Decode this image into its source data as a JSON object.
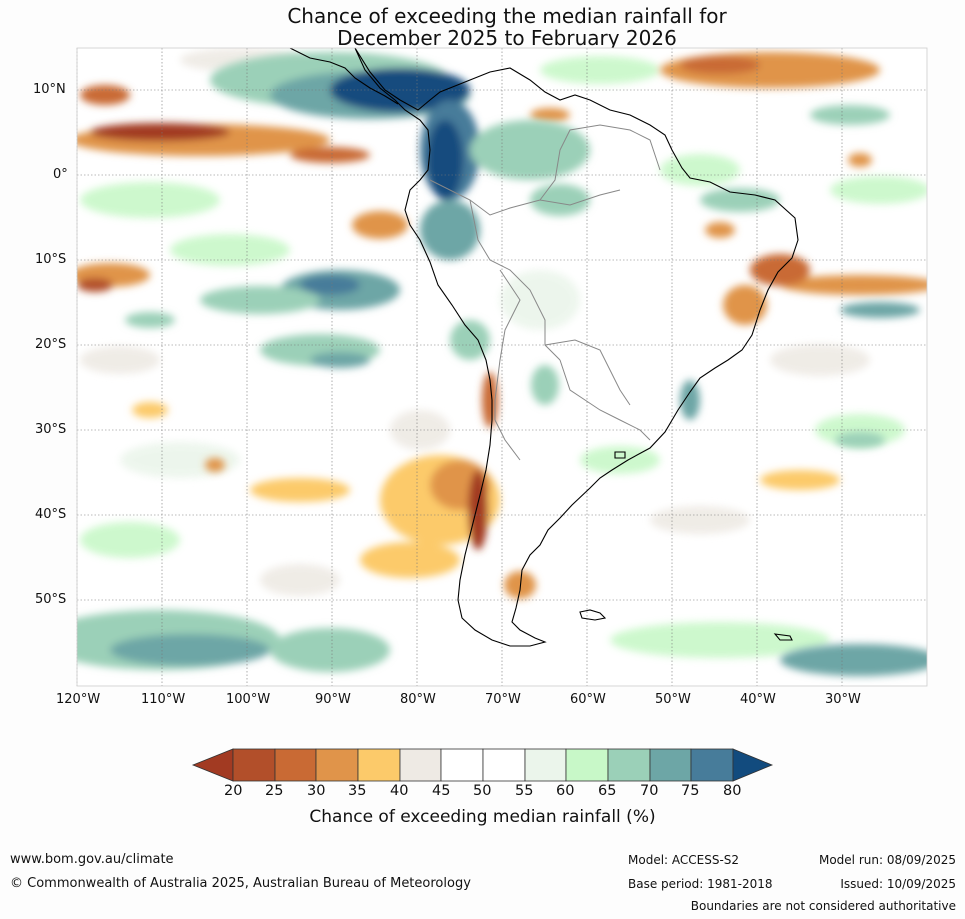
{
  "title": {
    "line1": "Chance of exceeding the median rainfall for",
    "line2": "December 2025 to February 2026"
  },
  "map": {
    "lat_labels": [
      "10°N",
      "0°",
      "10°S",
      "20°S",
      "30°S",
      "40°S",
      "50°S"
    ],
    "lon_labels": [
      "120°W",
      "110°W",
      "100°W",
      "90°W",
      "80°W",
      "70°W",
      "60°W",
      "50°W",
      "40°W",
      "30°W"
    ],
    "region": "South America and adjacent oceans",
    "lat_range": [
      -60,
      15
    ],
    "lon_range": [
      -120,
      -20
    ]
  },
  "colorbar": {
    "ticks": [
      "20",
      "25",
      "30",
      "35",
      "40",
      "45",
      "50",
      "55",
      "60",
      "65",
      "70",
      "75",
      "80"
    ],
    "colors": [
      "#a23a22",
      "#b24f2a",
      "#c96a34",
      "#e0944a",
      "#fcca6a",
      "#eeeae4",
      "#ffffff",
      "#ffffff",
      "#ebf5eb",
      "#c8f8c8",
      "#9bd0b8",
      "#6da6a6",
      "#477c9a",
      "#124b7e"
    ],
    "label": "Chance of exceeding median rainfall (%)"
  },
  "footer": {
    "website": "www.bom.gov.au/climate",
    "copyright": "© Commonwealth of Australia 2025, Australian Bureau of Meteorology",
    "model": "Model: ACCESS-S2",
    "base_period": "Base period: 1981-2018",
    "model_run": "Model run: 08/09/2025",
    "issued": "Issued: 10/09/2025",
    "disclaimer": "Boundaries are not considered authoritative"
  }
}
